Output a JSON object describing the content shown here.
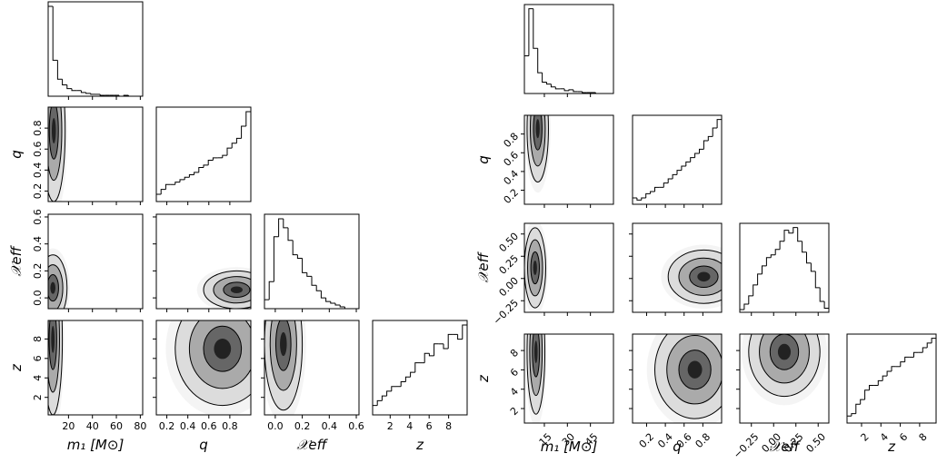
{
  "chart_data": [
    {
      "type": "corner",
      "color": "#000000",
      "params": [
        {
          "label": "m₁ [M⊙]",
          "lim": [
            3,
            82
          ],
          "ticks": [
            20,
            40,
            60,
            80
          ],
          "hist": [
            95,
            38,
            18,
            12,
            8,
            6,
            6,
            4,
            3,
            2,
            2,
            1,
            1,
            1,
            1,
            0,
            1,
            0,
            0,
            0
          ]
        },
        {
          "label": "q",
          "lim": [
            0.1,
            1.0
          ],
          "ticks": [
            0.2,
            0.4,
            0.6,
            0.8
          ],
          "hist": [
            3,
            5,
            7,
            7,
            8,
            9,
            10,
            11,
            12,
            14,
            15,
            17,
            18,
            18,
            19,
            22,
            24,
            26,
            31,
            37
          ]
        },
        {
          "label": "𝒳eff",
          "lim": [
            -0.08,
            0.62
          ],
          "ticks": [
            {
              "value": 0,
              "label": "0.0"
            },
            0.2,
            0.4,
            0.6
          ],
          "hist": [
            5,
            15,
            40,
            50,
            45,
            38,
            30,
            28,
            20,
            18,
            13,
            10,
            6,
            4,
            3,
            2,
            1,
            0,
            0,
            0
          ]
        },
        {
          "label": "z",
          "lim": [
            0.2,
            9.9
          ],
          "ticks": [
            2,
            4,
            6,
            8
          ],
          "hist": [
            4,
            6,
            8,
            10,
            12,
            12,
            14,
            16,
            18,
            22,
            22,
            26,
            25,
            30,
            30,
            28,
            34,
            34,
            32,
            38
          ]
        }
      ]
    },
    {
      "type": "corner",
      "color": "#000000",
      "params": [
        {
          "label": "m₁ [M⊙]",
          "lim": [
            2,
            60
          ],
          "ticks": [
            15,
            30,
            45
          ],
          "hist": [
            40,
            90,
            48,
            22,
            12,
            10,
            7,
            5,
            5,
            3,
            4,
            2,
            2,
            1,
            1,
            1,
            0,
            0,
            0,
            0
          ]
        },
        {
          "label": "q",
          "lim": [
            0.05,
            1.0
          ],
          "ticks": [
            0.2,
            0.4,
            0.6,
            0.8
          ],
          "hist": [
            3,
            2,
            3,
            5,
            6,
            8,
            8,
            10,
            12,
            14,
            16,
            18,
            20,
            22,
            24,
            26,
            30,
            32,
            36,
            40
          ]
        },
        {
          "label": "𝒳eff",
          "lim": [
            -0.38,
            0.62
          ],
          "ticks": [
            {
              "value": -0.25,
              "label": "−0.25"
            },
            {
              "value": 0,
              "label": "0.00"
            },
            0.25,
            {
              "value": 0.5,
              "label": "0.50"
            }
          ],
          "hist": [
            2,
            6,
            12,
            20,
            28,
            34,
            40,
            42,
            46,
            52,
            60,
            58,
            62,
            52,
            44,
            36,
            30,
            18,
            8,
            3
          ]
        },
        {
          "label": "z",
          "lim": [
            0.5,
            9.7
          ],
          "ticks": [
            2,
            4,
            6,
            8
          ],
          "hist": [
            3,
            4,
            8,
            10,
            14,
            16,
            16,
            18,
            20,
            22,
            24,
            24,
            26,
            28,
            28,
            30,
            30,
            32,
            34,
            36
          ]
        }
      ]
    }
  ]
}
